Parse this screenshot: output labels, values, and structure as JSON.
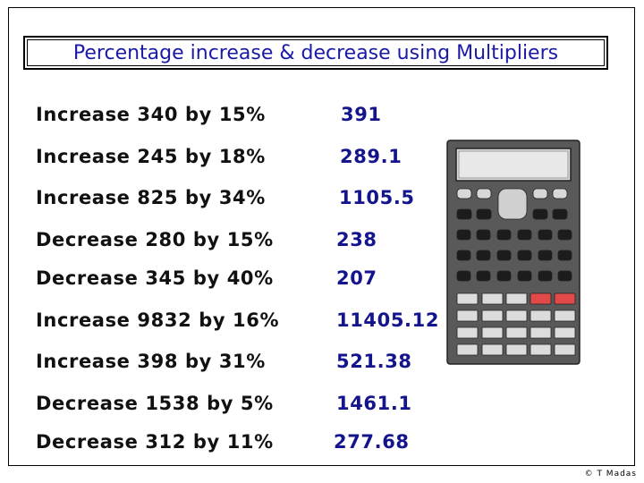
{
  "title": "Percentage increase & decrease using Multipliers",
  "rows": [
    {
      "question": "Increase 340 by 15%",
      "answer": "391"
    },
    {
      "question": "Increase 245 by 18%",
      "answer": "289.1"
    },
    {
      "question": "Increase 825 by 34%",
      "answer": "1105.5"
    },
    {
      "question": "Decrease 280 by 15%",
      "answer": "238"
    },
    {
      "question": "Decrease 345 by 40%",
      "answer": "207"
    },
    {
      "question": "Increase 9832 by 16%",
      "answer": "11405.12"
    },
    {
      "question": "Increase 398 by 31%",
      "answer": "521.38"
    },
    {
      "question": "Decrease 1538 by 5%",
      "answer": "1461.1"
    },
    {
      "question": "Decrease 312 by 11%",
      "answer": "277.68"
    }
  ],
  "copyright": "© T Madas",
  "colors": {
    "title": "#1a1aa6",
    "answer": "#14148c",
    "calculator_body": "#555555",
    "calculator_red_keys": "#e24a4a"
  },
  "icons": [
    "calculator-icon"
  ]
}
